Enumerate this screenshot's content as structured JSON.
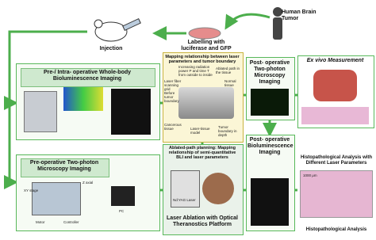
{
  "nodes": [
    {
      "label": "Human Brain Tumor"
    },
    {
      "label": "Labelling with luciferase and GFP"
    },
    {
      "label": "Injection"
    },
    {
      "label": "Pre-/ Intra- operative Whole-body Bioluminescence Imaging"
    },
    {
      "label": "Mapping relationship between laser parameters and tumor boundary"
    },
    {
      "label": "Post- operative Two-photon Microscopy Imaging"
    },
    {
      "label": "Ex vivo Measurement"
    },
    {
      "label": "Pre-operative Two-photon Microscopy Imaging"
    },
    {
      "label": "Ablated-path planning: Mapping relationship of semi-quantitative BLI and laser parameters"
    },
    {
      "label": "Post- operative Bioluminescence Imaging"
    },
    {
      "label": "Histopathological Analysis with Different Laser Parameters"
    },
    {
      "label": "Histopathological Analysis"
    },
    {
      "label": "Laser Ablation with Optical Theranostics Platform"
    }
  ],
  "annotations": [
    "Increasing radiation power P and time T from outside to inside",
    "Ablated path in the tissue",
    "Laser fiber scanning grid",
    "Before tumor boundary",
    "Cancerous tissue",
    "Normal tissue",
    "Laser-tissue model",
    "Tumor boundary in depth",
    "XY stage",
    "Z axial",
    "Motor",
    "Controller",
    "PC",
    "Nd:YAG Laser",
    "1000 μm"
  ]
}
